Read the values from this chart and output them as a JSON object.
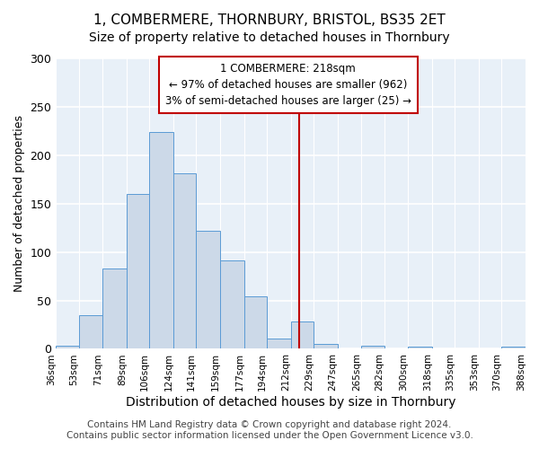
{
  "title": "1, COMBERMERE, THORNBURY, BRISTOL, BS35 2ET",
  "subtitle": "Size of property relative to detached houses in Thornbury",
  "xlabel": "Distribution of detached houses by size in Thornbury",
  "ylabel": "Number of detached properties",
  "bar_heights": [
    3,
    35,
    83,
    160,
    224,
    181,
    122,
    91,
    54,
    11,
    28,
    5,
    0,
    3,
    0,
    2,
    0,
    0,
    0,
    2
  ],
  "bin_edges": [
    36,
    53,
    71,
    89,
    106,
    124,
    141,
    159,
    177,
    194,
    212,
    229,
    247,
    265,
    282,
    300,
    318,
    335,
    353,
    370,
    388
  ],
  "bar_color": "#ccd9e8",
  "bar_edge_color": "#5b9bd5",
  "vline_x": 218,
  "vline_color": "#c00000",
  "annotation_text": "1 COMBERMERE: 218sqm\n← 97% of detached houses are smaller (962)\n3% of semi-detached houses are larger (25) →",
  "annotation_box_color": "white",
  "annotation_box_edge_color": "#c00000",
  "ylim": [
    0,
    300
  ],
  "yticks": [
    0,
    50,
    100,
    150,
    200,
    250,
    300
  ],
  "bg_color": "#e8f0f8",
  "grid_color": "white",
  "footer": "Contains HM Land Registry data © Crown copyright and database right 2024.\nContains public sector information licensed under the Open Government Licence v3.0.",
  "title_fontsize": 11,
  "subtitle_fontsize": 10,
  "xlabel_fontsize": 10,
  "ylabel_fontsize": 9,
  "footer_fontsize": 7.5
}
